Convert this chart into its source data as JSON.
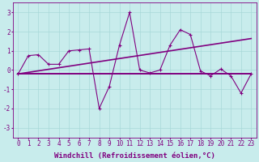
{
  "xlabel": "Windchill (Refroidissement éolien,°C)",
  "background_color": "#c8ecec",
  "line_color": "#800080",
  "grid_color": "#a8d8d8",
  "x_data": [
    0,
    1,
    2,
    3,
    4,
    5,
    6,
    7,
    8,
    9,
    10,
    11,
    12,
    13,
    14,
    15,
    16,
    17,
    18,
    19,
    20,
    21,
    22,
    23
  ],
  "y_main": [
    -0.2,
    0.75,
    0.8,
    0.3,
    0.3,
    1.0,
    1.05,
    1.1,
    -2.0,
    -0.85,
    1.3,
    3.0,
    0.0,
    -0.15,
    0.0,
    1.3,
    2.1,
    1.85,
    -0.05,
    -0.3,
    0.05,
    -0.3,
    -1.2,
    -0.2
  ],
  "y_flat": [
    -0.2,
    -0.2,
    -0.2,
    -0.2,
    -0.2,
    -0.2,
    -0.2,
    -0.2,
    -0.2,
    -0.2,
    -0.2,
    -0.2,
    -0.2,
    -0.2,
    -0.2,
    -0.2,
    -0.2,
    -0.2,
    -0.2,
    -0.2,
    -0.2,
    -0.2,
    -0.2,
    -0.2
  ],
  "y_trend": [
    -0.2,
    -0.12,
    -0.04,
    0.04,
    0.12,
    0.2,
    0.28,
    0.36,
    0.44,
    0.52,
    0.6,
    0.68,
    0.76,
    0.84,
    0.92,
    1.0,
    1.08,
    1.16,
    1.24,
    1.32,
    1.4,
    1.48,
    1.56,
    1.64
  ],
  "ylim": [
    -3.5,
    3.5
  ],
  "yticks": [
    -3,
    -2,
    -1,
    0,
    1,
    2,
    3
  ],
  "xticks": [
    0,
    1,
    2,
    3,
    4,
    5,
    6,
    7,
    8,
    9,
    10,
    11,
    12,
    13,
    14,
    15,
    16,
    17,
    18,
    19,
    20,
    21,
    22,
    23
  ],
  "tick_fontsize": 5.5,
  "xlabel_fontsize": 6.5,
  "marker": "+",
  "marker_size": 3,
  "line_width": 0.8
}
